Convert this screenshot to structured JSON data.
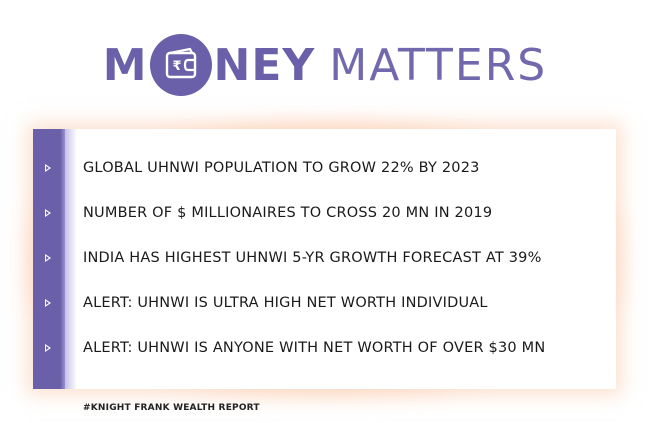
{
  "header": {
    "title_start": "M",
    "title_bold_rest": "NEY",
    "title_light": "MATTERS",
    "coin_icon": "rupee-wallet-icon",
    "coin_symbol": "₹",
    "color": "#6a60a9"
  },
  "card": {
    "accent": "#6a60a9",
    "items": [
      {
        "text": "GLOBAL UHNWI POPULATION TO GROW 22% BY 2023"
      },
      {
        "text": "NUMBER OF $ MILLIONAIRES TO CROSS 20 MN IN 2019"
      },
      {
        "text": "INDIA HAS HIGHEST UHNWI 5-YR GROWTH FORECAST AT 39%"
      },
      {
        "text": "ALERT: UHNWI IS ULTRA HIGH NET WORTH INDIVIDUAL"
      },
      {
        "text": "ALERT: UHNWI IS ANYONE WITH NET WORTH OF OVER $30 MN"
      }
    ]
  },
  "footer": {
    "source": "#KNIGHT FRANK WEALTH REPORT"
  }
}
